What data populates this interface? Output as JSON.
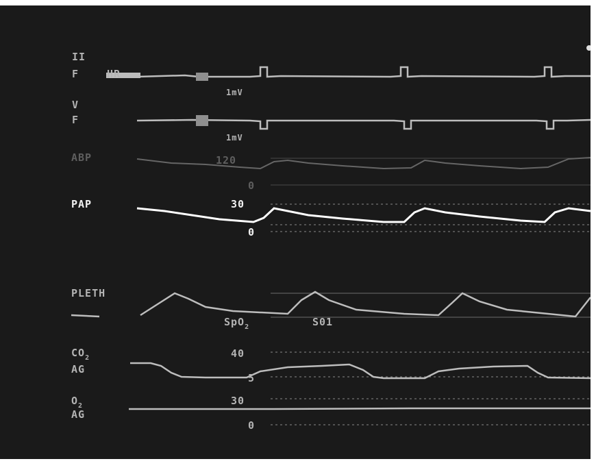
{
  "ecg_lead_1": {
    "lead": "II",
    "filter": "F",
    "tag": "HR",
    "scale": "1mV"
  },
  "ecg_lead_2": {
    "lead": "V",
    "filter": "F",
    "scale": "1mV"
  },
  "abp": {
    "label": "ABP",
    "scale_high": "120",
    "scale_low": "0"
  },
  "pap": {
    "label": "PAP",
    "scale_high": "30",
    "scale_low": "0"
  },
  "pleth": {
    "label": "PLETH",
    "spo2_label": "SpO",
    "spo2_sub": "2",
    "spo2_value": "S01"
  },
  "co2": {
    "label": "CO",
    "label_sub": "2",
    "source": "AG",
    "scale_high": "40",
    "scale_low": "5"
  },
  "o2": {
    "label": "O",
    "label_sub": "2",
    "source": "AG",
    "scale_high": "30",
    "scale_low": "0"
  },
  "colors": {
    "background": "#1a1a1a",
    "trace": "#bdbdbd",
    "pap_trace": "#ffffff",
    "abp_trace": "#666666"
  }
}
